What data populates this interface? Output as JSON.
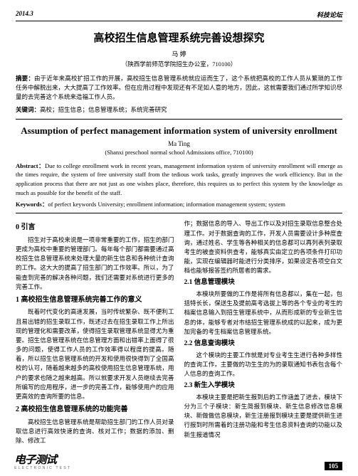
{
  "issue": "2014.3",
  "section": "科技论坛",
  "title_cn": "高校招生信息管理系统完善设想探究",
  "author_cn": "马 婷",
  "affil_cn": "（陕西学前师范学院招生办公室，710100）",
  "abs_cn_lbl": "摘要：",
  "abs_cn": "由于近年来高校扩招工作的开展，高校招生信息管理系统就应运而生了，这个系统把高校的工作人员从繁琐的工作任务中解脱出来，大大提高了工作效率。但在应用过程中发现还有不足如人意的地方，因此，这就需要我们通过所学知识尽量的去完善这个系统来造福工作人员。",
  "kw_cn_lbl": "关键词：",
  "kw_cn": "高校；招生信息；信息管理系统；系统完善研究",
  "title_en": "Assumption of perfect management information system of university enrollment",
  "author_en": "Ma Ting",
  "affil_en": "(Shanxi  preschool normal school Admissions office, 710100)",
  "abs_en_lbl": "Abstract：",
  "abs_en": "Due to college enrollment work in recent years, management information system of university enrollment will emerge as the times require, the system of free university staff from the tedious work tasks, greatly improves the work efficiency. But in the application process that there are not just as one wishes place, therefore, this requires us to perfect this system by the knowledge as much as possible for the benefit of the staff.",
  "kw_en_lbl": "Keywords：",
  "kw_en": "of perfect keywords University; enrollment information; information management system; system",
  "left": {
    "h0": "0  引言",
    "p0": "招生对于高校来说是一项非常重要的工作，招生的部门更成为高校中重要的管理部门。每年每个部门都需要通过高校招生信息管理系统来处理大量的新生信息和各种统计查询的工作。这大大的提高了招生部门的工作效率。所以，为了能查到完善的解决各种问题，我们还需要对系统进行更多的完善工作。",
    "h1": "1  高校招生信息管理系统完善工作的意义",
    "p1a": "既着时代变化的高速发展，当时传统繁杂、既不便利工且易出错的招生录取工作，既述过去在招生录取工作上所出现的管理化和需要改革，使得招生录取管理系统显得尤为重要。招生信息管理系统在信息管理方面和出错率上面得了很多的问题，使得工作人员的工作效率得以程度的提高。随着，所以招生信息管理系统的开发和使用很快得到了全国高校的认可，随着越来越多的高校使用招生信息管理系统，用户的要求也随之越来越高。所以就要求开发人员继续去完善所编写的应用程序，进一步的完善工作，能够使用户的应用更高效的查询所要的信息。",
    "h2": "2  高校招生信息管理系统的功能完善",
    "p2": "高校招生信息管理系统是帮助招生部门的工作人员对录取信息进行高效快速的查询、核对工作；数据的添加、删除、修改工"
  },
  "right": {
    "p0": "作；数据信息的导入、导出工作以及对招生录取信息整合处理工作。对于数据查询的工作，开发人员需要设计多种度查询，通过姓名、学生等各种相关的信息都可以再列表列录取考生的被查资料供查考，能够真实由定立的各项条件打印功能，实现在编辑器时能进行分类排序，如果设定各项空白文档也能够报答签约所居者的需求。",
    "h21": "2.1  信息管理模块",
    "p21": "本模块所要做的工作是将所有信息都以，集在一起，包括特长长，保送生及提前高考选拔上等的各个专业的考生的档案信息输入到招生管理系统中，从而形成新的专业新生信息的体，能够专者对市结招生管理系统成的以起来，成为更加完备的考生档案信息管理系统。",
    "h22": "2.2  信息查询模块",
    "p22": "这个模块的主要工作就是对专业考生生进行各种多样性的查询工作，主要做的功生生的为的录取通知书表包含每个人信息的查询工作。",
    "h23": "2.3  新生入学模块",
    "p23": "本模块主要是把新生报到后的工作涵盖了进去，模块下分为三个子模块：新生简报到模块、新生信息修改信息模块、新做做信息模块，新生注册报到模块主要是提供新生进行报到时所需着的注册功能和考生信息资料查询的功能以及新生报道情况"
  },
  "logo": "电子测试",
  "logo_sub": "ELECTRONIC TEST",
  "pageno": "105"
}
